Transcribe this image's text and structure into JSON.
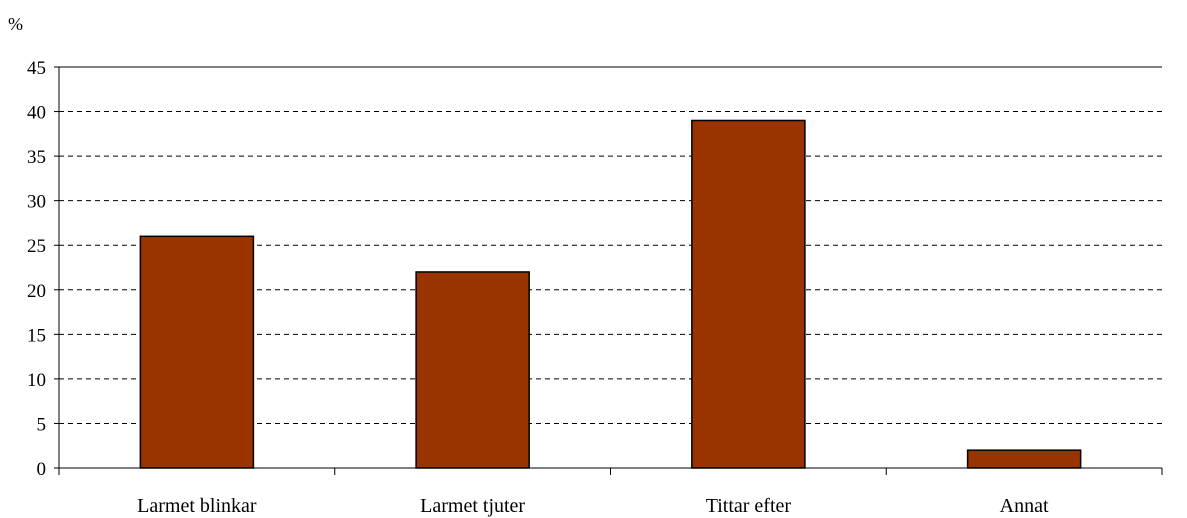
{
  "chart_data": {
    "type": "bar",
    "categories": [
      "Larmet blinkar",
      "Larmet tjuter",
      "Tittar efter",
      "Annat"
    ],
    "values": [
      26,
      22,
      39,
      2
    ],
    "title": "",
    "xlabel": "",
    "ylabel": "%",
    "ylim": [
      0,
      45
    ],
    "y_ticks": [
      "0",
      "5",
      "10",
      "15",
      "20",
      "25",
      "30",
      "35",
      "40",
      "45"
    ],
    "grid": true,
    "legend": "none",
    "colors": {
      "bar_fill": "#993300",
      "bar_stroke": "#000000",
      "axis": "#000000",
      "grid": "#000000",
      "background": "#ffffff"
    }
  }
}
